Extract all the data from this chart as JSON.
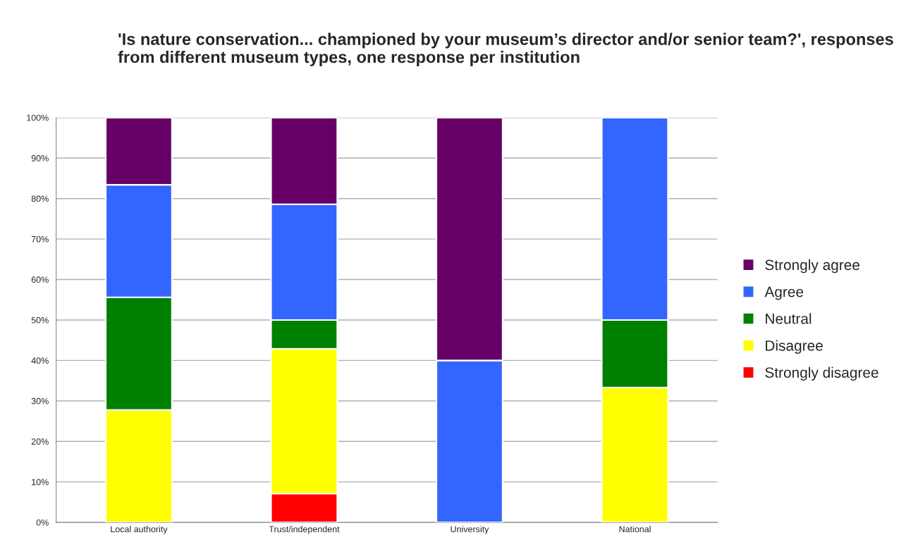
{
  "chart_data": {
    "type": "bar",
    "stacked": true,
    "title": "'Is nature conservation... championed by your museum’s director and/or senior team?', responses from different museum types, one response per institution",
    "categories": [
      "Local authority",
      "Trust/independent",
      "University",
      "National"
    ],
    "series": [
      {
        "name": "Strongly disagree",
        "color": "#ff0000",
        "values": [
          0,
          7.1,
          0,
          0
        ]
      },
      {
        "name": "Disagree",
        "color": "#ffff00",
        "values": [
          27.8,
          35.8,
          0,
          33.3
        ]
      },
      {
        "name": "Neutral",
        "color": "#008000",
        "values": [
          27.8,
          7.1,
          0,
          16.7
        ]
      },
      {
        "name": "Agree",
        "color": "#3366ff",
        "values": [
          27.8,
          28.6,
          40,
          50
        ]
      },
      {
        "name": "Strongly agree",
        "color": "#660066",
        "values": [
          16.6,
          21.4,
          60,
          0
        ]
      }
    ],
    "ylim": [
      0,
      100
    ],
    "yticks": [
      {
        "value": 0,
        "label": "0%"
      },
      {
        "value": 10,
        "label": "10%"
      },
      {
        "value": 20,
        "label": "20%"
      },
      {
        "value": 30,
        "label": "30%"
      },
      {
        "value": 40,
        "label": "40%"
      },
      {
        "value": 50,
        "label": "50%"
      },
      {
        "value": 60,
        "label": "60%"
      },
      {
        "value": 70,
        "label": "70%"
      },
      {
        "value": 80,
        "label": "80%"
      },
      {
        "value": 90,
        "label": "90%"
      },
      {
        "value": 100,
        "label": "100%"
      }
    ],
    "grid": "y",
    "legend": "right"
  }
}
